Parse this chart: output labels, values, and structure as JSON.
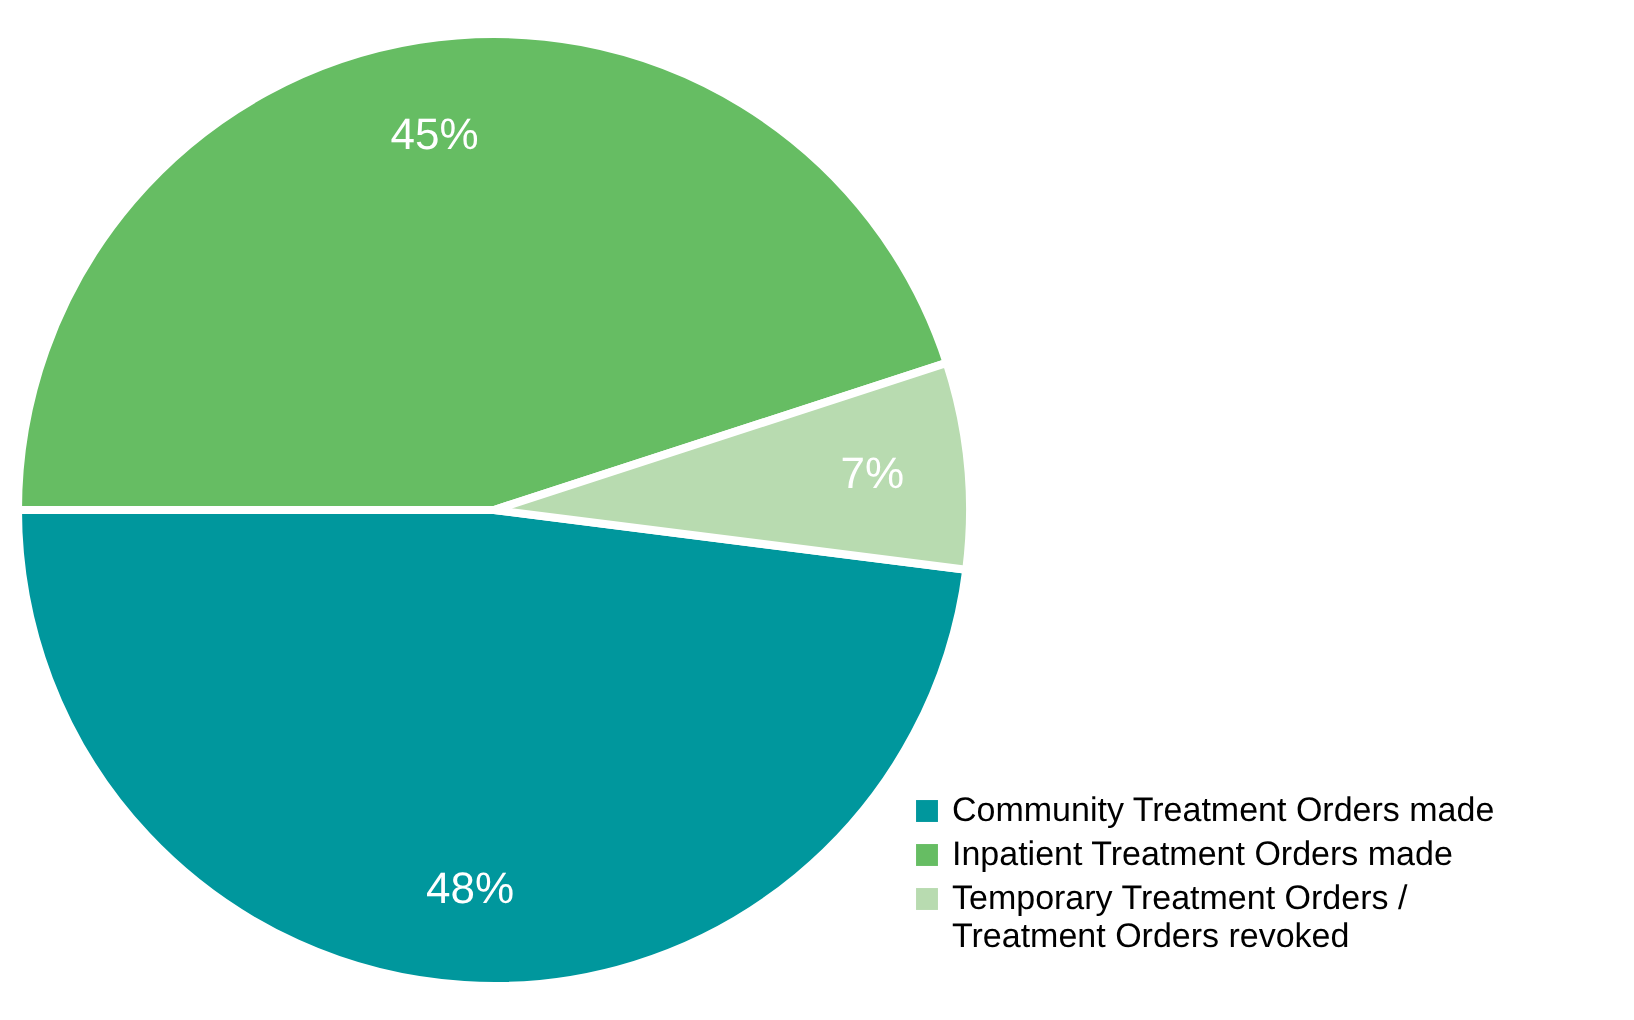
{
  "chart_data": {
    "type": "pie",
    "categories": [
      "Community Treatment Orders made",
      "Inpatient Treatment Orders made",
      "Temporary Treatment Orders / Treatment Orders revoked"
    ],
    "values": [
      48,
      45,
      7
    ],
    "colors": [
      "#00979d",
      "#66bd63",
      "#b8dbb0"
    ],
    "value_labels": [
      "48%",
      "45%",
      "7%"
    ],
    "legend": "bottom right"
  }
}
